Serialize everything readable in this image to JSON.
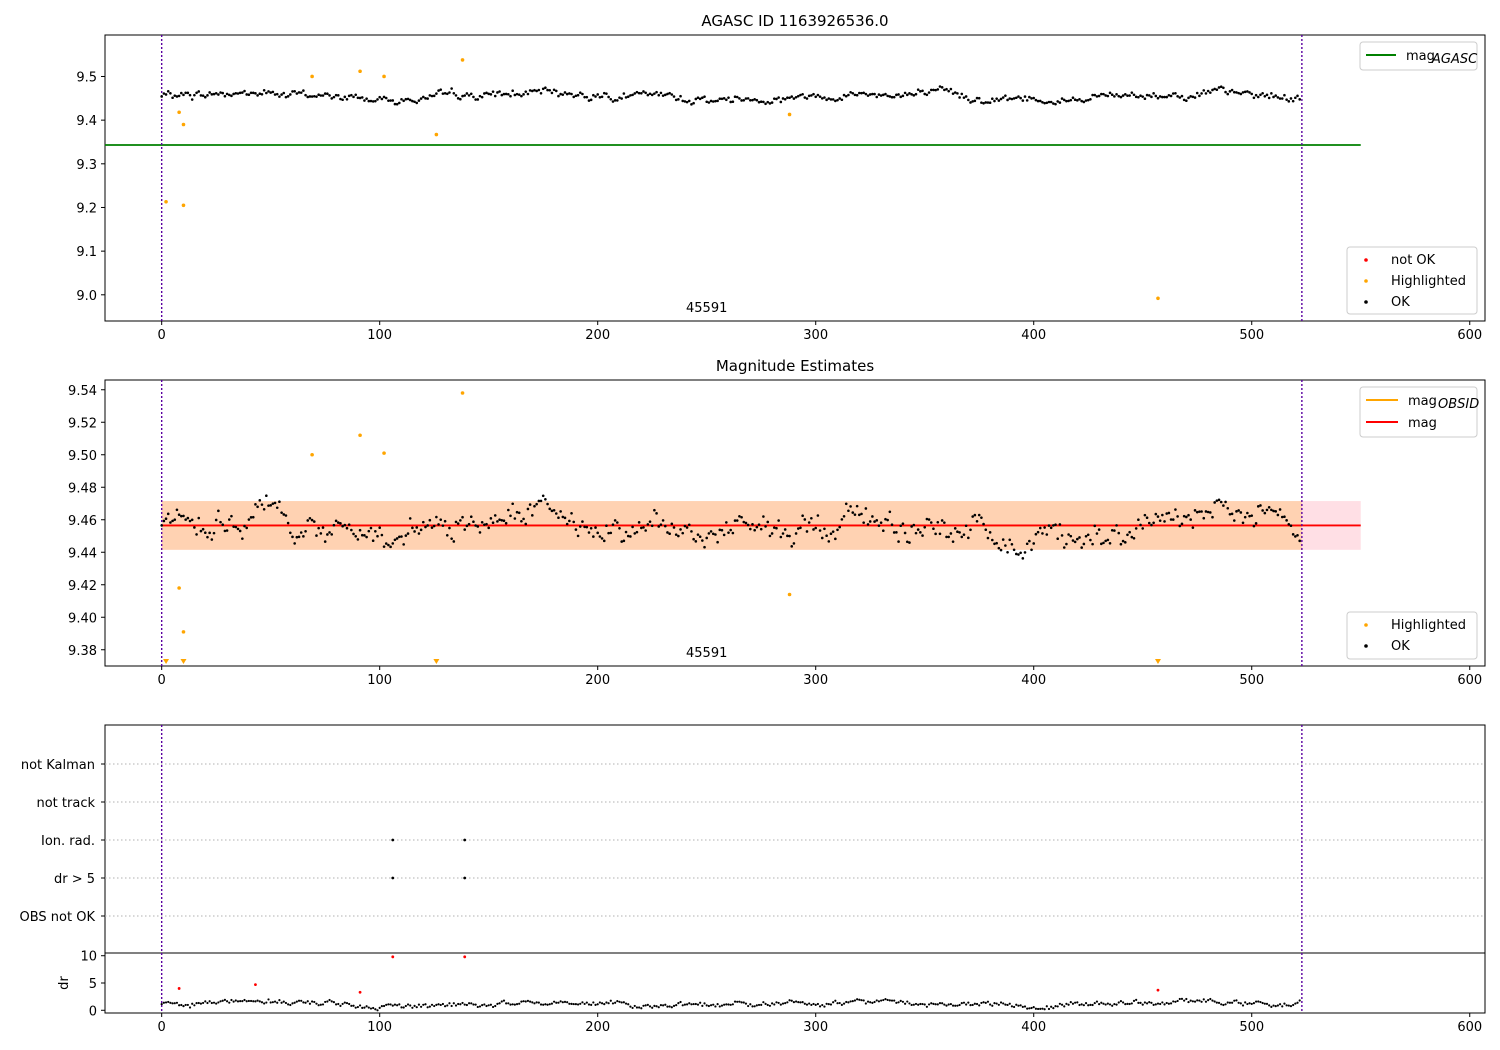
{
  "chart_data": [
    {
      "type": "scatter",
      "title": "AGASC ID 1163926536.0",
      "xlim": [
        -26,
        607
      ],
      "ylim": [
        8.94,
        9.595
      ],
      "xticks": [
        0,
        100,
        200,
        300,
        400,
        500,
        600
      ],
      "yticks": [
        9.0,
        9.1,
        9.2,
        9.3,
        9.4,
        9.5
      ],
      "ytick_labels": [
        "9.0",
        "9.1",
        "9.2",
        "9.3",
        "9.4",
        "9.5"
      ],
      "vlines": [
        0,
        523
      ],
      "annotation": {
        "x": 250,
        "text": "45591"
      },
      "legend_top": {
        "placement": "top-right",
        "entries": [
          {
            "label": "mag",
            "sub": "AGASC",
            "color": "#008000"
          }
        ]
      },
      "legend_bottom": {
        "placement": "bottom-right",
        "entries": [
          {
            "label": "not OK",
            "color": "#ff0000"
          },
          {
            "label": "Highlighted",
            "color": "#ffa500"
          },
          {
            "label": "OK",
            "color": "#000000"
          }
        ]
      },
      "hline": {
        "y": 9.343,
        "x_start": -26,
        "x_end": 550,
        "color": "#008000"
      },
      "ok_series": {
        "base": 9.455,
        "amplitude": 0.018,
        "n": 523
      },
      "highlighted_points": [
        [
          2,
          9.213
        ],
        [
          8,
          9.418
        ],
        [
          10,
          9.39
        ],
        [
          10,
          9.205
        ],
        [
          69,
          9.5
        ],
        [
          91,
          9.512
        ],
        [
          102,
          9.5
        ],
        [
          126,
          9.367
        ],
        [
          138,
          9.538
        ],
        [
          288,
          9.413
        ],
        [
          457,
          8.992
        ]
      ]
    },
    {
      "type": "scatter",
      "title": "Magnitude Estimates",
      "xlim": [
        -26,
        607
      ],
      "ylim": [
        9.37,
        9.546
      ],
      "xticks": [
        0,
        100,
        200,
        300,
        400,
        500,
        600
      ],
      "yticks": [
        9.38,
        9.4,
        9.42,
        9.44,
        9.46,
        9.48,
        9.5,
        9.52,
        9.54
      ],
      "ytick_labels": [
        "9.38",
        "9.40",
        "9.42",
        "9.44",
        "9.46",
        "9.48",
        "9.50",
        "9.52",
        "9.54"
      ],
      "vlines": [
        0,
        523
      ],
      "annotation": {
        "x": 250,
        "text": "45591"
      },
      "legend_top": {
        "placement": "top-right",
        "entries": [
          {
            "label": "mag",
            "sub": "OBSID",
            "color": "#ffa500"
          },
          {
            "label": "mag",
            "sub": "",
            "color": "#ff0000"
          }
        ]
      },
      "legend_bottom": {
        "placement": "bottom-right",
        "entries": [
          {
            "label": "Highlighted",
            "color": "#ffa500"
          },
          {
            "label": "OK",
            "color": "#000000"
          }
        ]
      },
      "mag": 9.4565,
      "band_outer": [
        9.4415,
        9.4715
      ],
      "band_inner": [
        9.4415,
        9.4715
      ],
      "ok_series": {
        "base": 9.456,
        "amplitude": 0.016,
        "n": 523
      },
      "highlighted_points": [
        [
          8,
          9.418
        ],
        [
          10,
          9.391
        ],
        [
          69,
          9.5
        ],
        [
          91,
          9.512
        ],
        [
          102,
          9.501
        ],
        [
          138,
          9.538
        ],
        [
          288,
          9.414
        ]
      ],
      "below_axis_markers": [
        2,
        10,
        126,
        457
      ]
    },
    {
      "type": "scatter",
      "title": "",
      "xlim": [
        -26,
        607
      ],
      "categories": [
        "not Kalman",
        "not track",
        "Ion. rad.",
        "dr > 5",
        "OBS not OK"
      ],
      "vlines": [
        0,
        523
      ],
      "flag_points": [
        {
          "category": "Ion. rad.",
          "x": [
            106,
            139
          ]
        },
        {
          "category": "dr > 5",
          "x": [
            106,
            139
          ]
        }
      ]
    },
    {
      "type": "scatter",
      "title": "",
      "ylabel": "dr",
      "xlim": [
        -26,
        607
      ],
      "ylim": [
        -0.5,
        10.5
      ],
      "xticks": [
        0,
        100,
        200,
        300,
        400,
        500,
        600
      ],
      "yticks": [
        0,
        5,
        10
      ],
      "ytick_labels": [
        "0",
        "5",
        "10"
      ],
      "vlines": [
        0,
        523
      ],
      "red_points": [
        [
          8,
          4.0
        ],
        [
          43,
          4.7
        ],
        [
          91,
          3.3
        ],
        [
          106,
          9.8
        ],
        [
          139,
          9.8
        ],
        [
          457,
          3.7
        ]
      ],
      "ok_series": {
        "base": 1.2,
        "amplitude": 0.9,
        "n": 523
      }
    }
  ]
}
